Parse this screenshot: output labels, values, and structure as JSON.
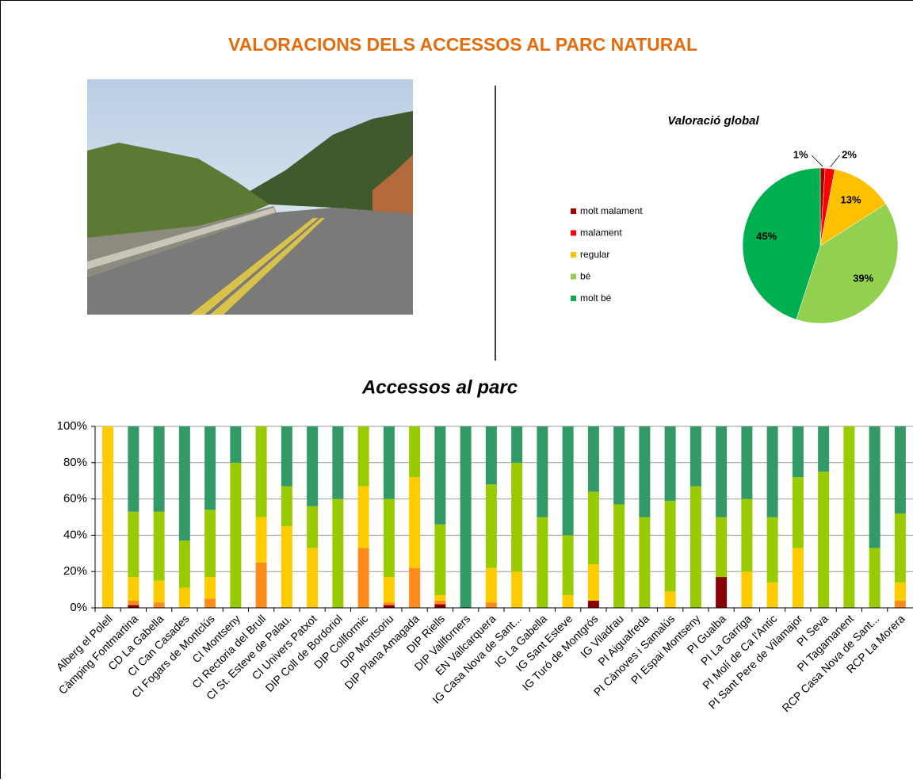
{
  "title": "VALORACIONS DELS ACCESSOS AL PARC NATURAL",
  "chart_data": [
    {
      "type": "pie",
      "title": "Valoració global",
      "categories": [
        "molt malament",
        "malament",
        "regular",
        "bé",
        "molt bé"
      ],
      "values": [
        1,
        2,
        13,
        39,
        45
      ],
      "value_labels": [
        "1%",
        "2%",
        "13%",
        "39%",
        "45%"
      ],
      "colors": [
        "#a50000",
        "#ff0000",
        "#ffc000",
        "#92d050",
        "#00b050"
      ],
      "legend": "left"
    },
    {
      "type": "stacked_bar",
      "title": "Accessos al parc",
      "categories": [
        "Alberg el Polell",
        "Càmping Fontmartina",
        "CD La Gabella",
        "CI Can Casades",
        "CI Fogars de Montclús",
        "CI Montseny",
        "CI Rectoria del Brull",
        "CI St. Esteve de Palau.",
        "CI Univers Patxot",
        "DIP Coll de Bordoriol",
        "DIP Collformic",
        "DIP Montsoriu",
        "DIP Plana Amagada",
        "DIP Riells",
        "DIP Vallforners",
        "EN Vallcarquera",
        "IG Casa Nova de Sant...",
        "IG La Gabella",
        "IG Sant Esteve",
        "IG Turó de Montgrós",
        "IG Viladrau",
        "PI Aiguafreda",
        "PI Cànoves i Samalús",
        "PI Espai Montseny",
        "PI Gualba",
        "PI La Garriga",
        "PI Molí de Ca l'Antic",
        "PI Sant Pere de Vilamajor",
        "PI Seva",
        "PI Tagamanent",
        "RCP Casa Nova de Sant...",
        "RCP La Morera"
      ],
      "series": [
        {
          "name": "molt malament",
          "color": "#8b0000",
          "values": [
            0,
            1.5,
            0,
            0,
            0,
            0,
            0,
            0,
            0,
            0,
            0,
            1.5,
            0,
            2,
            0,
            0,
            0,
            0,
            0,
            4,
            0,
            0,
            0,
            0,
            17,
            0,
            0,
            0,
            0,
            0,
            0,
            0
          ]
        },
        {
          "name": "malament",
          "color": "#ff8c1a",
          "values": [
            0,
            2.5,
            3,
            0,
            5,
            0,
            25,
            0,
            0,
            0,
            33,
            1.5,
            22,
            2,
            0,
            3,
            0,
            0,
            0,
            0,
            0,
            0,
            0,
            0,
            0,
            0,
            0,
            0,
            0,
            0,
            0,
            4
          ]
        },
        {
          "name": "regular",
          "color": "#ffcc00",
          "values": [
            100,
            13,
            12,
            11,
            12,
            0,
            25,
            45,
            33,
            0,
            34,
            14,
            50,
            3,
            0,
            19,
            20,
            0,
            7,
            20,
            0,
            0,
            9,
            0,
            0,
            20,
            14,
            33,
            0,
            0,
            0,
            10
          ]
        },
        {
          "name": "bé",
          "color": "#99cc00",
          "values": [
            0,
            36,
            38,
            26,
            37,
            80,
            50,
            22,
            23,
            60,
            33,
            43,
            28,
            39,
            0,
            46,
            60,
            50,
            33,
            40,
            57,
            50,
            50,
            67,
            33,
            40,
            36,
            39,
            75,
            100,
            33,
            38
          ]
        },
        {
          "name": "molt bé",
          "color": "#339966",
          "values": [
            0,
            47,
            47,
            63,
            46,
            20,
            0,
            33,
            44,
            40,
            0,
            40,
            0,
            54,
            100,
            32,
            20,
            50,
            60,
            36,
            43,
            50,
            41,
            33,
            50,
            40,
            50,
            28,
            25,
            0,
            67,
            48
          ]
        }
      ],
      "ylim": [
        0,
        100
      ],
      "yticks": [
        {
          "value": 0,
          "label": "0%"
        },
        {
          "value": 20,
          "label": "20%"
        },
        {
          "value": 40,
          "label": "40%"
        },
        {
          "value": 60,
          "label": "60%"
        },
        {
          "value": 80,
          "label": "80%"
        },
        {
          "value": 100,
          "label": "100%"
        }
      ],
      "grid": true
    }
  ]
}
